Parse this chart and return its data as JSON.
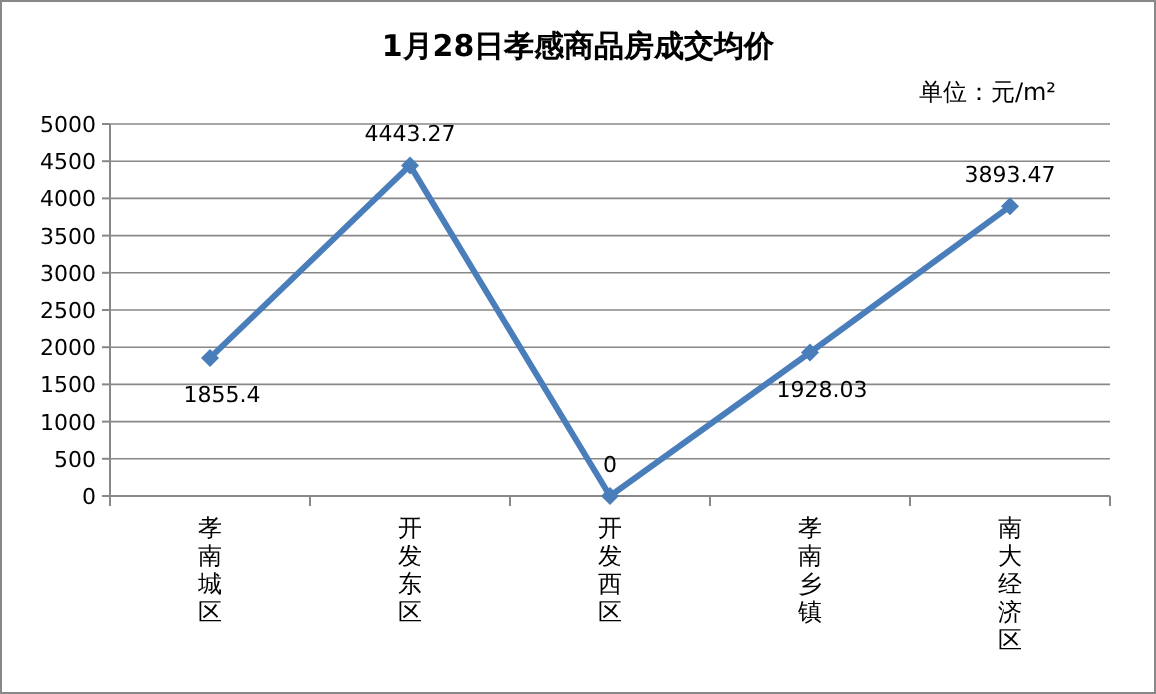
{
  "chart_data": {
    "type": "line",
    "title": "1月28日孝感商品房成交均价",
    "annotations": [
      "单位：元/m²"
    ],
    "categories": [
      "孝南城区",
      "开发东区",
      "开发西区",
      "孝南乡镇",
      "南大经济区"
    ],
    "series": [
      {
        "color": "#4a7ebb",
        "values": [
          1855.4,
          4443.27,
          0,
          1928.03,
          3893.47
        ]
      }
    ],
    "ylim": [
      0,
      5000
    ],
    "yticks": [
      0,
      500,
      1000,
      1500,
      2000,
      2500,
      3000,
      3500,
      4000,
      4500,
      5000
    ],
    "grid": "y",
    "marker": "diamond",
    "line_style": "solid",
    "data_labels": true
  }
}
